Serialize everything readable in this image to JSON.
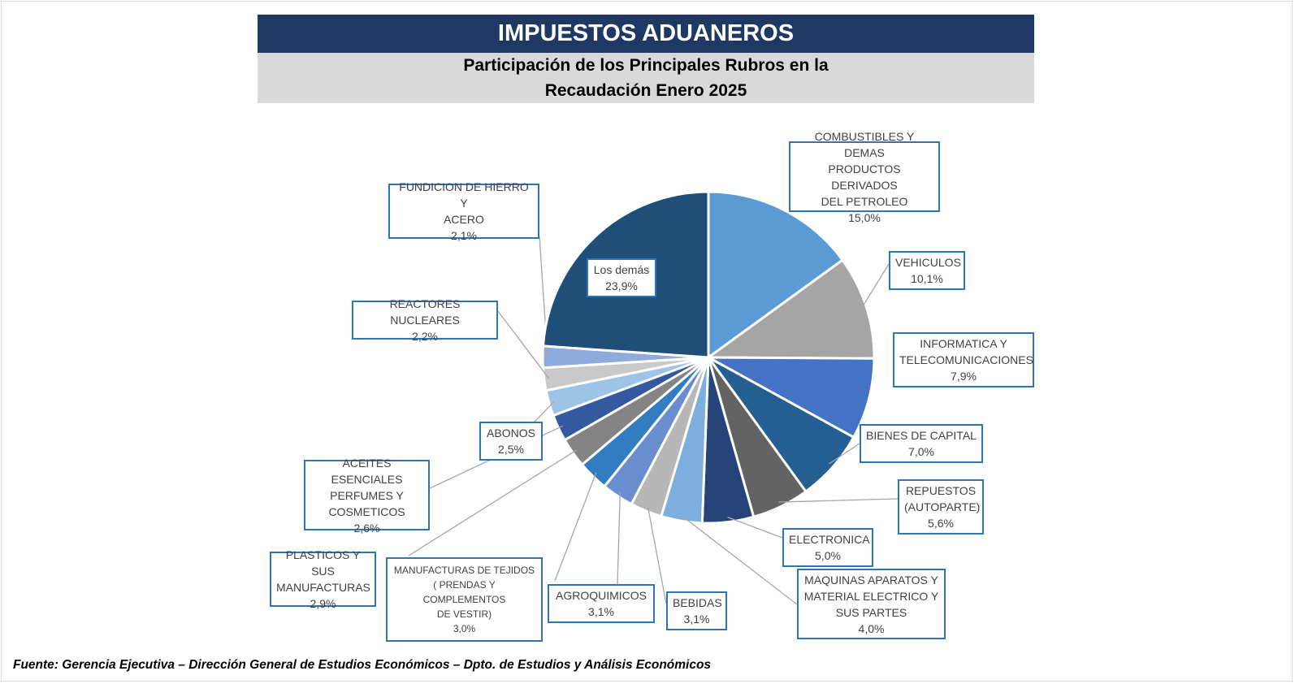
{
  "header": {
    "title": "IMPUESTOS ADUANEROS",
    "subtitle_line1": "Participación de los Principales Rubros en la",
    "subtitle_line2": "Recaudación Enero 2025",
    "title_bg": "#1f3864"
  },
  "chart_data": {
    "type": "pie",
    "title": "Participación de los Principales Rubros en la Recaudación Enero 2025",
    "unit": "%",
    "slices": [
      {
        "label_lines": [
          "COMBUSTIBLES Y DEMAS",
          "PRODUCTOS DERIVADOS",
          "DEL PETROLEO"
        ],
        "value": 15.0,
        "value_text": "15,0%",
        "color": "#5b9bd5"
      },
      {
        "label_lines": [
          "VEHICULOS"
        ],
        "value": 10.1,
        "value_text": "10,1%",
        "color": "#a5a5a5"
      },
      {
        "label_lines": [
          "INFORMATICA Y",
          "TELECOMUNICACIONES"
        ],
        "value": 7.9,
        "value_text": "7,9%",
        "color": "#4472c4"
      },
      {
        "label_lines": [
          "BIENES DE CAPITAL"
        ],
        "value": 7.0,
        "value_text": "7,0%",
        "color": "#255e91"
      },
      {
        "label_lines": [
          "REPUESTOS",
          "(AUTOPARTE)"
        ],
        "value": 5.6,
        "value_text": "5,6%",
        "color": "#636363"
      },
      {
        "label_lines": [
          "ELECTRONICA"
        ],
        "value": 5.0,
        "value_text": "5,0%",
        "color": "#264478"
      },
      {
        "label_lines": [
          "MAQUINAS APARATOS Y",
          "MATERIAL ELECTRICO Y",
          "SUS PARTES"
        ],
        "value": 4.0,
        "value_text": "4,0%",
        "color": "#7cafdd"
      },
      {
        "label_lines": [
          "BEBIDAS"
        ],
        "value": 3.1,
        "value_text": "3,1%",
        "color": "#b7b7b7"
      },
      {
        "label_lines": [
          "AGROQUIMICOS"
        ],
        "value": 3.1,
        "value_text": "3,1%",
        "color": "#698ed0"
      },
      {
        "label_lines": [
          "MANUFACTURAS DE TEJIDOS",
          "( PRENDAS Y COMPLEMENTOS",
          "DE VESTIR)"
        ],
        "value": 3.0,
        "value_text": "3,0%",
        "color": "#327dc2"
      },
      {
        "label_lines": [
          "PLASTICOS Y SUS",
          "MANUFACTURAS"
        ],
        "value": 2.9,
        "value_text": "2,9%",
        "color": "#848484"
      },
      {
        "label_lines": [
          "ACEITES ESENCIALES",
          "PERFUMES Y",
          "COSMETICOS"
        ],
        "value": 2.6,
        "value_text": "2,6%",
        "color": "#335aa1"
      },
      {
        "label_lines": [
          "ABONOS"
        ],
        "value": 2.5,
        "value_text": "2,5%",
        "color": "#9dc3e6"
      },
      {
        "label_lines": [
          "REACTORES NUCLEARES"
        ],
        "value": 2.2,
        "value_text": "2,2%",
        "color": "#c9c9c9"
      },
      {
        "label_lines": [
          "FUNDICION DE HIERRO Y",
          "ACERO"
        ],
        "value": 2.1,
        "value_text": "2,1%",
        "color": "#8faadc"
      },
      {
        "label_lines": [
          "Los demás"
        ],
        "value": 23.9,
        "value_text": "23,9%",
        "color": "#1f4e79"
      }
    ]
  },
  "source_text": "Fuente: Gerencia Ejecutiva – Dirección General de Estudios Económicos – Dpto. de Estudios y Análisis Económicos"
}
